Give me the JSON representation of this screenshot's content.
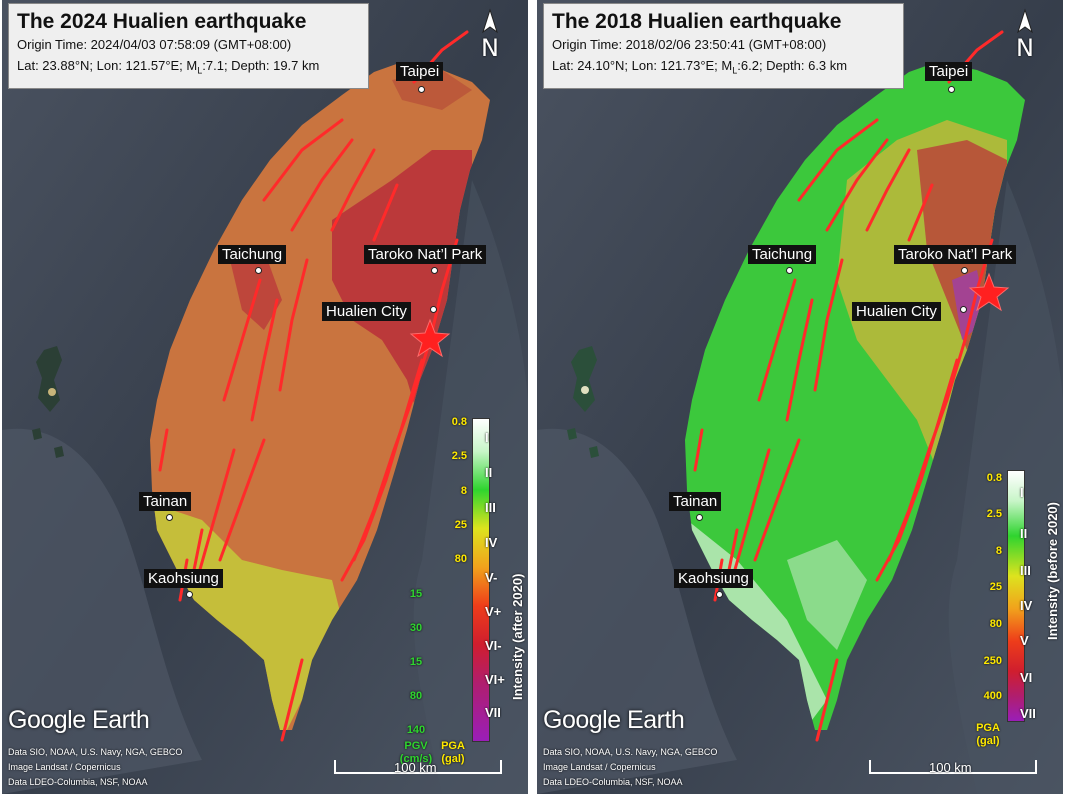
{
  "left": {
    "title": "The 2024 Hualien earthquake",
    "origin_time": "Origin Time: 2024/04/03 07:58:09 (GMT+08:00)",
    "location_prefix": "Lat: 23.88°N; Lon: 121.57°E; M",
    "location_sub": "L",
    "location_suffix": ":7.1; Depth: 19.7 km",
    "north_label": "N",
    "cities": {
      "taipei": "Taipei",
      "taichung": "Taichung",
      "taroko": "Taroko Nat’l Park",
      "hualien": "Hualien City",
      "tainan": "Tainan",
      "kaohsiung": "Kaohsiung"
    },
    "pga_labels": [
      "0.8",
      "2.5",
      "8",
      "25",
      "80"
    ],
    "pgv_labels": [
      "15",
      "30",
      "15",
      "80",
      "140"
    ],
    "intensity_labels": [
      "I",
      "II",
      "III",
      "IV",
      "V-",
      "V+",
      "VI-",
      "VI+",
      "VII"
    ],
    "colorbar_title": "Intensity (after 2020)",
    "pgv_unit_1": "PGV",
    "pgv_unit_2": "(cm/s)",
    "pga_unit_1": "PGA",
    "pga_unit_2": "(gal)",
    "google_earth": "Google Earth",
    "credits": [
      "Data SIO, NOAA, U.S. Navy, NGA, GEBCO",
      "Image Landsat / Copernicus",
      "Data LDEO-Columbia, NSF, NOAA"
    ],
    "scale_label": "100 km"
  },
  "right": {
    "title": "The 2018 Hualien earthquake",
    "origin_time": "Origin Time: 2018/02/06 23:50:41 (GMT+08:00)",
    "location_prefix": "Lat: 24.10°N; Lon: 121.73°E; M",
    "location_sub": "L",
    "location_suffix": ":6.2; Depth: 6.3 km",
    "north_label": "N",
    "cities": {
      "taipei": "Taipei",
      "taichung": "Taichung",
      "taroko": "Taroko Nat’l Park",
      "hualien": "Hualien City",
      "tainan": "Tainan",
      "kaohsiung": "Kaohsiung"
    },
    "pga_labels": [
      "0.8",
      "2.5",
      "8",
      "25",
      "80",
      "250",
      "400"
    ],
    "intensity_labels": [
      "I",
      "II",
      "III",
      "IV",
      "V",
      "VI",
      "VII"
    ],
    "colorbar_title": "Intensity (before 2020)",
    "pga_unit_1": "PGA",
    "pga_unit_2": "(gal)",
    "google_earth": "Google Earth",
    "credits": [
      "Data SIO, NOAA, U.S. Navy, NGA, GEBCO",
      "Image Landsat / Copernicus",
      "Data LDEO-Columbia, NSF, NOAA"
    ],
    "scale_label": "100 km"
  },
  "colors": {
    "sea": "#3b4452",
    "fault": "#ff2a2a",
    "epicenter": "#ff2020",
    "intensity_2024_main": "#c9743f",
    "intensity_2024_high": "#b9333a",
    "intensity_2024_low": "#c5c23a",
    "intensity_2018_main": "#3cc83c",
    "intensity_2018_mid": "#b8b83a",
    "intensity_2018_high": "#b8453a"
  }
}
